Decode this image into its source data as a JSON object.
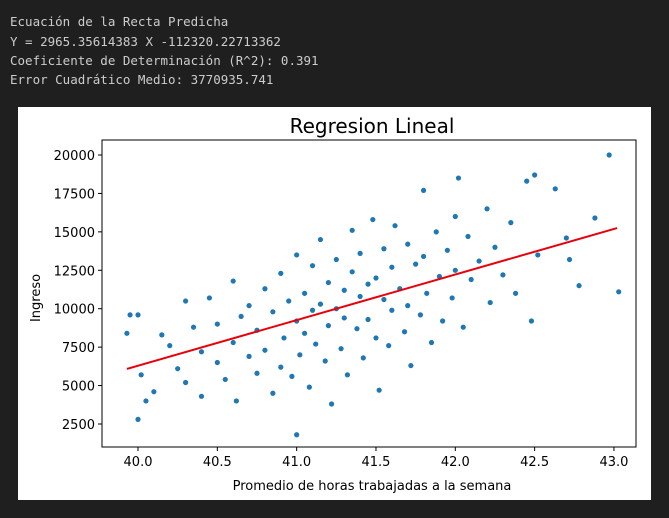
{
  "output_lines": [
    "Ecuación de la Recta Predicha",
    "Y = 2965.35614383 X -112320.22713362",
    "Coeficiente de Determinación (R^2): 0.391",
    "Error Cuadrático Medio: 3770935.741"
  ],
  "chart_data": {
    "type": "scatter",
    "title": "Regresion Lineal",
    "xlabel": "Promedio de horas trabajadas a la semana",
    "ylabel": "Ingreso",
    "xlim": [
      39.773,
      43.139
    ],
    "ylim": [
      1004,
      20976
    ],
    "xticks": [
      {
        "value": 40,
        "label": "40.0"
      },
      40.5,
      {
        "value": 41,
        "label": "41.0"
      },
      41.5,
      {
        "value": 42,
        "label": "42.0"
      },
      42.5,
      {
        "value": 43,
        "label": "43.0"
      }
    ],
    "yticks": [
      2500,
      5000,
      7500,
      10000,
      12500,
      15000,
      17500,
      20000
    ],
    "grid": false,
    "series": [
      {
        "type": "scatter",
        "color": "#1f77b4",
        "x": [
          39.93,
          39.95,
          40.0,
          40.0,
          40.05,
          40.1,
          40.02,
          40.15,
          40.2,
          40.25,
          40.3,
          40.3,
          40.35,
          40.4,
          40.4,
          40.45,
          40.5,
          40.5,
          40.55,
          40.6,
          40.6,
          40.62,
          40.65,
          40.7,
          40.7,
          40.75,
          40.75,
          40.8,
          40.8,
          40.85,
          40.85,
          40.9,
          40.9,
          40.92,
          40.95,
          40.97,
          41.0,
          41.0,
          41.0,
          41.02,
          41.05,
          41.05,
          41.08,
          41.1,
          41.1,
          41.12,
          41.15,
          41.15,
          41.18,
          41.2,
          41.2,
          41.22,
          41.25,
          41.25,
          41.28,
          41.3,
          41.3,
          41.32,
          41.35,
          41.35,
          41.38,
          41.4,
          41.4,
          41.42,
          41.45,
          41.45,
          41.48,
          41.5,
          41.5,
          41.52,
          41.55,
          41.55,
          41.58,
          41.6,
          41.6,
          41.62,
          41.65,
          41.68,
          41.7,
          41.7,
          41.72,
          41.75,
          41.78,
          41.8,
          41.8,
          41.82,
          41.85,
          41.88,
          41.9,
          41.92,
          41.95,
          41.98,
          42.0,
          42.0,
          42.02,
          42.05,
          42.08,
          42.1,
          42.15,
          42.2,
          42.22,
          42.25,
          42.3,
          42.35,
          42.38,
          42.45,
          42.48,
          42.5,
          42.52,
          42.63,
          42.7,
          42.72,
          42.78,
          42.88,
          42.97,
          43.03
        ],
        "values": [
          8400,
          9600,
          9600,
          2800,
          4000,
          4600,
          5700,
          8300,
          7600,
          6100,
          10500,
          5200,
          8800,
          4300,
          7200,
          10700,
          6500,
          9000,
          5400,
          11800,
          7800,
          4000,
          9500,
          6900,
          10200,
          5800,
          8600,
          11300,
          7300,
          4500,
          9800,
          6200,
          12300,
          8100,
          10500,
          5600,
          1800,
          9200,
          13500,
          7000,
          11000,
          8400,
          4900,
          9900,
          12800,
          7700,
          10300,
          14500,
          6600,
          11700,
          8900,
          3800,
          10000,
          13200,
          7400,
          11200,
          9400,
          5700,
          12400,
          15100,
          8700,
          10800,
          13600,
          6800,
          11600,
          9300,
          15800,
          12000,
          8100,
          4700,
          10600,
          13900,
          7600,
          12700,
          9900,
          15400,
          11300,
          8500,
          14200,
          10200,
          6300,
          12900,
          9600,
          17700,
          13400,
          11000,
          7800,
          15000,
          12100,
          9200,
          13800,
          10700,
          16000,
          12500,
          18500,
          8800,
          14700,
          11900,
          13100,
          16500,
          10400,
          14000,
          12200,
          15600,
          11000,
          18300,
          9200,
          18700,
          13500,
          17800,
          14600,
          13200,
          11500,
          15900,
          20000,
          11100
        ]
      },
      {
        "type": "line",
        "color": "#e8000b",
        "x": [
          39.93,
          43.02
        ],
        "values": [
          6086,
          15249
        ]
      }
    ]
  }
}
